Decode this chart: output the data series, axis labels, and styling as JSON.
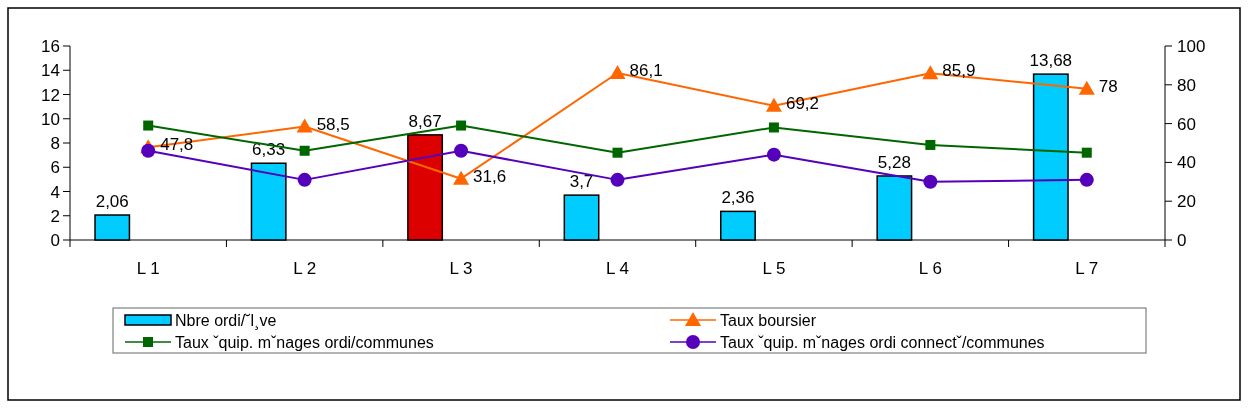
{
  "chart_data": {
    "type": "bar",
    "categories": [
      "L 1",
      "L 2",
      "L 3",
      "L 4",
      "L 5",
      "L 6",
      "L 7"
    ],
    "ylim": [
      0,
      16
    ],
    "yticks": [
      0,
      2,
      4,
      6,
      8,
      10,
      12,
      14,
      16
    ],
    "y2lim": [
      0,
      100
    ],
    "y2ticks": [
      0,
      20,
      40,
      60,
      80,
      100
    ],
    "grid": false,
    "legend": "bottom",
    "series": [
      {
        "name": "Nbre ordi/˘l¸ve",
        "color": "#00ccff",
        "colors": [
          "#00ccff",
          "#00ccff",
          "#dd0000",
          "#00ccff",
          "#00ccff",
          "#00ccff",
          "#00ccff"
        ],
        "values": [
          2.06,
          6.33,
          8.67,
          3.7,
          2.36,
          5.28,
          13.68
        ],
        "value_labels": [
          "2,06",
          "6,33",
          "8,67",
          "3,7",
          "2,36",
          "5,28",
          "13,68"
        ]
      },
      {
        "name": "Taux boursier",
        "type": "line",
        "axis": "y2",
        "color": "#ff6600",
        "marker": "triangle",
        "values": [
          47.8,
          58.5,
          31.6,
          86.1,
          69.2,
          85.9,
          78
        ],
        "value_labels": [
          "47,8",
          "58,5",
          "31,6",
          "86,1",
          "69,2",
          "85,9",
          "78"
        ]
      },
      {
        "name": "Taux ˇquip. mˇnages ordi/communes",
        "type": "line",
        "axis": "y2",
        "color": "#006600",
        "marker": "square",
        "values": [
          59,
          46,
          59,
          45,
          58,
          49,
          45
        ]
      },
      {
        "name": "Taux ˇquip. mˇnages ordi connectˇ/communes",
        "type": "line",
        "axis": "y2",
        "color": "#5500bb",
        "marker": "circle",
        "values": [
          46,
          31,
          46,
          31,
          44,
          30,
          31
        ]
      }
    ]
  }
}
